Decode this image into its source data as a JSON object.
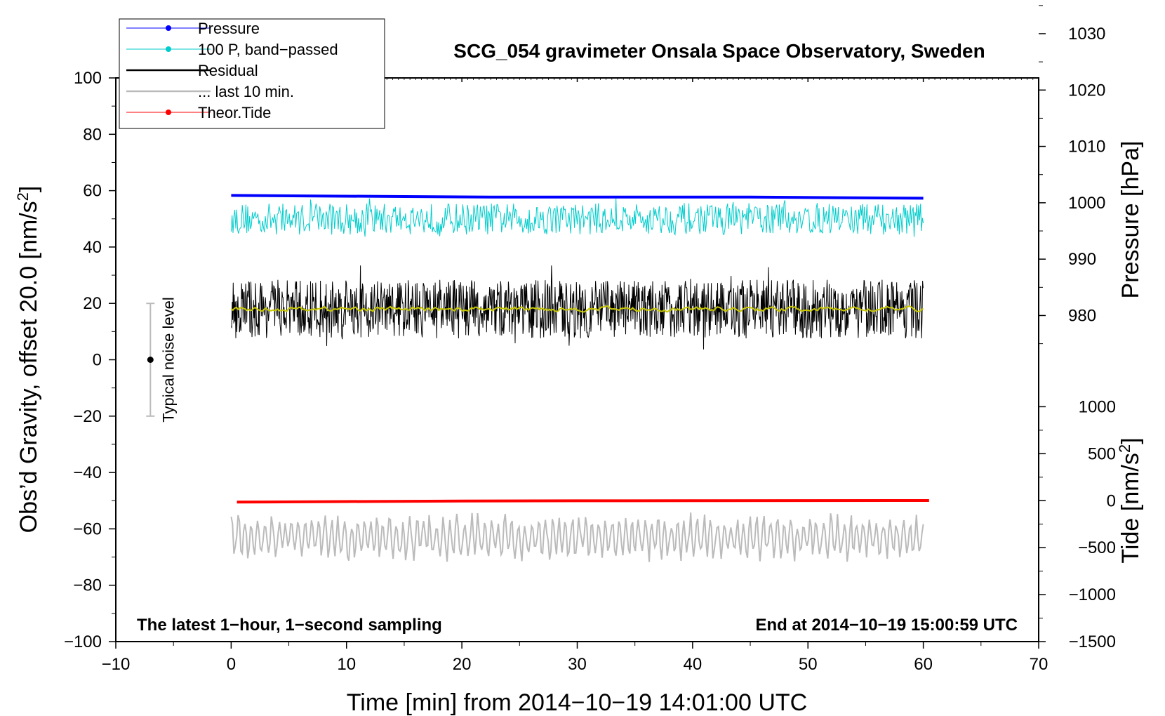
{
  "chart_data": {
    "type": "line",
    "title": "SCG_054 gravimeter Onsala Space Observatory, Sweden",
    "xlabel": "Time [min] from 2014−10−19 14:01:00 UTC",
    "ylabel_left": "Obs’d Gravity, offset 20.0 [nm/s",
    "ylabel_left_sup": "2",
    "ylabel_left_close": "]",
    "ylabel_right_top": "Pressure [hPa]",
    "ylabel_right_bottom": "Tide [nm/s",
    "ylabel_right_bottom_sup": "2",
    "ylabel_right_bottom_close": "]",
    "xlim": [
      -10,
      70
    ],
    "ylim": [
      -100,
      100
    ],
    "x_ticks": [
      -10,
      0,
      10,
      20,
      30,
      40,
      50,
      60,
      70
    ],
    "x_tick_labels": [
      "−10",
      "0",
      "10",
      "20",
      "30",
      "40",
      "50",
      "60",
      "70"
    ],
    "y_ticks": [
      -100,
      -80,
      -60,
      -40,
      -20,
      0,
      20,
      40,
      60,
      80,
      100
    ],
    "y_tick_labels": [
      "−100",
      "−80",
      "−60",
      "−40",
      "−20",
      "0",
      "20",
      "40",
      "60",
      "80",
      "100"
    ],
    "pressure_axis": {
      "ticks": [
        980,
        990,
        1000,
        1010,
        1020,
        1030
      ],
      "tick_labels": [
        "980",
        "990",
        "1000",
        "1010",
        "1020",
        "1030"
      ],
      "gravity_at_980": 15.7,
      "gravity_per_hPa": 2.0
    },
    "tide_axis": {
      "ticks": [
        -1500,
        -1000,
        -500,
        0,
        500,
        1000
      ],
      "tick_labels": [
        "−1500",
        "−1000",
        "−500",
        "0",
        "500",
        "1000"
      ],
      "gravity_at_0": -50.0,
      "gravity_per_unit": 0.033333
    },
    "series": [
      {
        "name": "Pressure",
        "color": "#0000ff",
        "time_range": [
          0,
          60
        ],
        "values_hPa": [
          1001.3,
          1001.2,
          1001.1,
          1001.0,
          1001.0,
          1001.0,
          1001.0,
          1000.9,
          1000.8
        ]
      },
      {
        "name": "100 P, band−passed",
        "color": "#00cccc",
        "time_range": [
          0,
          60
        ],
        "baseline": 50,
        "amplitude": 3.5
      },
      {
        "name": "Residual",
        "color": "#000000",
        "time_range": [
          0,
          60
        ],
        "baseline": 18,
        "amplitude": 6.5
      },
      {
        "name": "smoothed residual",
        "color": "#c8c800",
        "time_range": [
          0,
          60
        ],
        "baseline": 18
      },
      {
        "name": "... last 10 min.",
        "color": "#bbbbbb",
        "time_range": [
          0,
          60
        ],
        "baseline": -63,
        "amplitude": 6
      },
      {
        "name": "Theor.Tide",
        "color": "#ff0000",
        "x": [
          0.5,
          10,
          20,
          30,
          40,
          50,
          60.5
        ],
        "values_nms2": [
          -15,
          -9,
          -4,
          -1,
          0,
          1,
          2
        ]
      }
    ],
    "legend": [
      {
        "label": "Pressure",
        "color": "#0000ff",
        "marker": true
      },
      {
        "label": "100 P, band−passed",
        "color": "#00cccc",
        "marker": true
      },
      {
        "label": "Residual",
        "color": "#000000",
        "marker": false
      },
      {
        "label": "... last 10 min.",
        "color": "#bbbbbb",
        "marker": false
      },
      {
        "label": "Theor.Tide",
        "color": "#ff0000",
        "marker": true
      }
    ],
    "legend_position": "top-left",
    "noise_level": {
      "label": "Typical noise level",
      "x": -7,
      "center": 0,
      "half_range": 20
    },
    "note_left": "The latest 1−hour, 1−second sampling",
    "note_right": "End at 2014−10−19 15:00:59 UTC"
  }
}
